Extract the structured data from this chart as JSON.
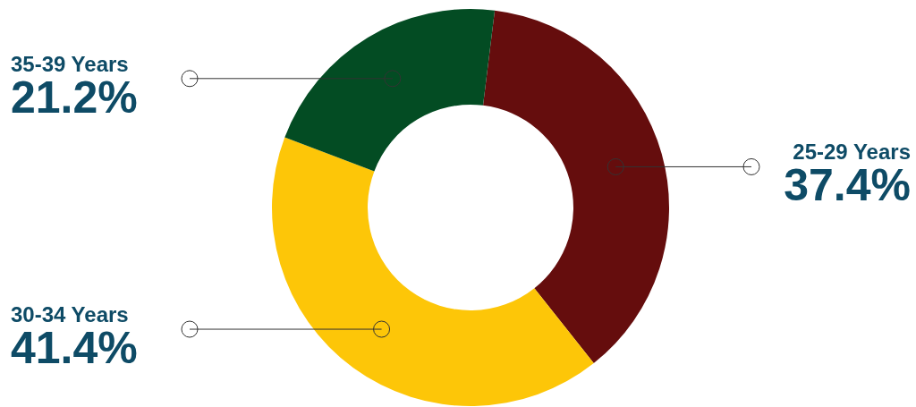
{
  "chart_data": {
    "type": "donut",
    "categories": [
      "25-29 Years",
      "30-34 Years",
      "35-39 Years"
    ],
    "values": [
      37.4,
      41.4,
      21.2
    ],
    "colors": [
      "#650d0d",
      "#fdc608",
      "#034c23"
    ],
    "value_labels": [
      "37.4%",
      "41.4%",
      "21.2%"
    ],
    "legend": false
  }
}
